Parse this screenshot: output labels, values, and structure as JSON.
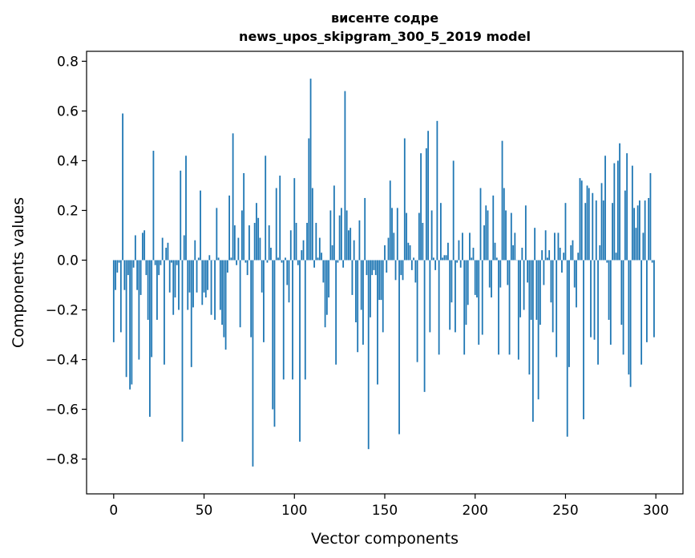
{
  "chart_data": {
    "type": "bar",
    "title": "висенте содре",
    "subtitle": "news_upos_skipgram_300_5_2019 model",
    "xlabel": "Vector components",
    "ylabel": "Components values",
    "xlim": [
      -15,
      315
    ],
    "ylim": [
      -0.94,
      0.84
    ],
    "xticks": [
      0,
      50,
      100,
      150,
      200,
      250,
      300
    ],
    "yticks": [
      -0.8,
      -0.6,
      -0.4,
      -0.2,
      0.0,
      0.2,
      0.4,
      0.6,
      0.8
    ],
    "ytick_labels": [
      "−0.8",
      "−0.6",
      "−0.4",
      "−0.2",
      "0.0",
      "0.2",
      "0.4",
      "0.6",
      "0.8"
    ],
    "grid": false,
    "bar_color": "#1f77b4",
    "values": [
      -0.33,
      -0.12,
      -0.05,
      -0.01,
      -0.29,
      0.59,
      -0.12,
      -0.47,
      -0.06,
      -0.52,
      -0.5,
      -0.03,
      0.1,
      -0.12,
      -0.4,
      -0.14,
      0.11,
      0.12,
      -0.06,
      -0.24,
      -0.63,
      -0.39,
      0.44,
      -0.02,
      -0.24,
      -0.06,
      -0.02,
      0.09,
      -0.42,
      0.05,
      0.07,
      -0.13,
      -0.01,
      -0.22,
      -0.15,
      -0.02,
      -0.2,
      0.36,
      -0.73,
      0.1,
      0.42,
      -0.2,
      -0.13,
      -0.43,
      -0.19,
      0.08,
      -0.13,
      0.01,
      0.28,
      -0.18,
      -0.13,
      -0.15,
      -0.12,
      0.02,
      -0.22,
      0.0,
      -0.24,
      0.21,
      0.01,
      -0.2,
      -0.26,
      -0.31,
      -0.36,
      -0.05,
      0.26,
      0.01,
      0.51,
      0.14,
      -0.02,
      0.09,
      -0.27,
      0.2,
      0.35,
      -0.01,
      -0.06,
      0.14,
      -0.31,
      -0.83,
      0.15,
      0.23,
      0.17,
      0.09,
      -0.13,
      -0.33,
      0.42,
      -0.01,
      0.14,
      0.05,
      -0.6,
      -0.67,
      0.29,
      0.01,
      0.34,
      -0.01,
      -0.48,
      0.01,
      -0.1,
      -0.17,
      0.12,
      -0.48,
      0.33,
      0.15,
      -0.02,
      -0.73,
      0.04,
      0.08,
      -0.48,
      0.15,
      0.49,
      0.73,
      0.29,
      -0.03,
      0.15,
      0.01,
      0.09,
      0.03,
      -0.09,
      -0.27,
      -0.22,
      -0.15,
      0.2,
      0.06,
      0.3,
      -0.42,
      -0.01,
      0.18,
      0.21,
      -0.03,
      0.68,
      0.2,
      0.12,
      0.13,
      -0.14,
      0.08,
      -0.25,
      -0.37,
      0.16,
      -0.2,
      -0.34,
      0.25,
      -0.06,
      -0.76,
      -0.23,
      -0.06,
      -0.04,
      -0.06,
      -0.5,
      -0.16,
      -0.16,
      -0.29,
      0.06,
      -0.05,
      0.09,
      0.32,
      0.21,
      0.11,
      -0.08,
      0.21,
      -0.7,
      -0.06,
      -0.08,
      0.49,
      0.19,
      0.07,
      0.06,
      -0.04,
      0.01,
      -0.09,
      -0.41,
      0.19,
      0.43,
      0.15,
      -0.53,
      0.45,
      0.52,
      -0.29,
      0.2,
      0.01,
      -0.04,
      0.56,
      -0.38,
      0.23,
      0.01,
      0.02,
      0.02,
      0.07,
      -0.28,
      -0.17,
      0.4,
      -0.29,
      -0.01,
      0.08,
      -0.03,
      0.11,
      -0.38,
      -0.26,
      -0.18,
      0.11,
      0.01,
      0.05,
      -0.14,
      -0.15,
      -0.34,
      0.29,
      -0.3,
      0.14,
      0.22,
      0.2,
      -0.11,
      -0.15,
      0.26,
      0.07,
      0.01,
      -0.38,
      -0.11,
      0.48,
      0.29,
      0.2,
      -0.1,
      -0.38,
      0.19,
      0.06,
      0.11,
      0.0,
      -0.4,
      -0.23,
      0.05,
      -0.2,
      0.22,
      -0.09,
      -0.46,
      -0.24,
      -0.65,
      0.13,
      -0.24,
      -0.56,
      -0.26,
      0.04,
      -0.1,
      0.12,
      0.01,
      0.04,
      -0.17,
      -0.29,
      0.11,
      -0.39,
      0.11,
      0.05,
      -0.05,
      0.03,
      0.23,
      -0.71,
      -0.43,
      0.06,
      0.08,
      -0.11,
      -0.19,
      0.03,
      0.33,
      0.32,
      -0.64,
      0.23,
      0.3,
      0.29,
      -0.31,
      0.27,
      -0.32,
      0.24,
      -0.42,
      0.06,
      0.31,
      0.24,
      0.42,
      -0.01,
      -0.24,
      -0.34,
      0.23,
      0.39,
      0.03,
      0.4,
      0.47,
      -0.26,
      -0.38,
      0.28,
      0.43,
      -0.46,
      -0.51,
      0.38,
      0.21,
      0.13,
      0.22,
      0.24,
      -0.42,
      0.11,
      0.24,
      -0.33,
      0.25,
      0.35,
      -0.01,
      -0.31
    ]
  }
}
